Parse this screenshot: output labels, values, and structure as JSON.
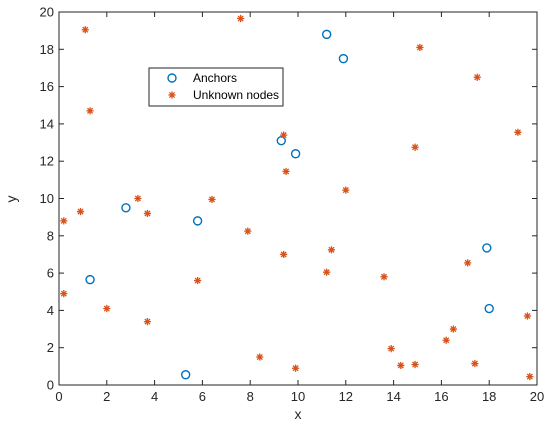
{
  "chart_data": {
    "type": "scatter",
    "title": "",
    "xlabel": "x",
    "ylabel": "y",
    "xlim": [
      0,
      20
    ],
    "ylim": [
      0,
      20
    ],
    "xticks": [
      "0",
      "2",
      "4",
      "6",
      "8",
      "10",
      "12",
      "14",
      "16",
      "18",
      "20"
    ],
    "yticks": [
      "0",
      "2",
      "4",
      "6",
      "8",
      "10",
      "12",
      "14",
      "16",
      "18",
      "20"
    ],
    "grid": false,
    "legend_position": "upper-left-center",
    "series": [
      {
        "name": "Anchors",
        "marker": "circle-open",
        "color": "#0072BD",
        "points": [
          [
            11.2,
            18.8
          ],
          [
            11.9,
            17.5
          ],
          [
            9.3,
            13.1
          ],
          [
            9.9,
            12.4
          ],
          [
            2.8,
            9.5
          ],
          [
            5.8,
            8.8
          ],
          [
            1.3,
            5.65
          ],
          [
            17.9,
            7.35
          ],
          [
            18.0,
            4.1
          ],
          [
            5.3,
            0.55
          ]
        ]
      },
      {
        "name": "Unknown nodes",
        "marker": "asterisk",
        "color": "#D95319",
        "points": [
          [
            7.6,
            19.65
          ],
          [
            1.1,
            19.05
          ],
          [
            15.1,
            18.1
          ],
          [
            17.5,
            16.5
          ],
          [
            1.3,
            14.7
          ],
          [
            19.2,
            13.55
          ],
          [
            9.4,
            13.4
          ],
          [
            14.9,
            12.75
          ],
          [
            9.5,
            11.45
          ],
          [
            12.0,
            10.45
          ],
          [
            3.3,
            10.0
          ],
          [
            6.4,
            9.95
          ],
          [
            0.9,
            9.3
          ],
          [
            3.7,
            9.2
          ],
          [
            0.2,
            8.8
          ],
          [
            7.9,
            8.25
          ],
          [
            11.4,
            7.25
          ],
          [
            9.4,
            7.0
          ],
          [
            17.1,
            6.55
          ],
          [
            11.2,
            6.05
          ],
          [
            13.6,
            5.8
          ],
          [
            5.8,
            5.6
          ],
          [
            0.2,
            4.9
          ],
          [
            2.0,
            4.1
          ],
          [
            19.6,
            3.7
          ],
          [
            3.7,
            3.4
          ],
          [
            16.5,
            3.0
          ],
          [
            16.2,
            2.4
          ],
          [
            13.9,
            1.95
          ],
          [
            8.4,
            1.5
          ],
          [
            14.3,
            1.05
          ],
          [
            14.9,
            1.1
          ],
          [
            17.4,
            1.15
          ],
          [
            9.9,
            0.9
          ],
          [
            19.7,
            0.45
          ]
        ]
      }
    ]
  }
}
